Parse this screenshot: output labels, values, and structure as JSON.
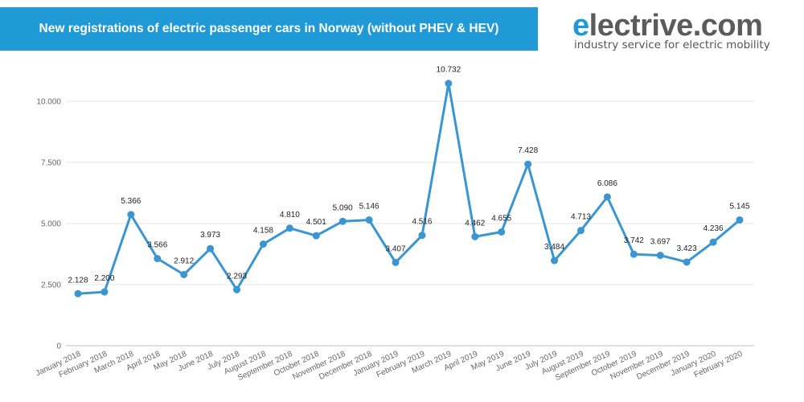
{
  "header": {
    "title": "New registrations of electric passenger cars in Norway (without PHEV & HEV)"
  },
  "logo": {
    "e": "e",
    "rest": "lectrive.com",
    "tagline": "industry service for electric mobility"
  },
  "colors": {
    "title_bar": "#1f9ad6",
    "series": "#3a96d3",
    "grid": "#e5e5e5"
  },
  "chart_data": {
    "type": "line",
    "title": "New registrations of electric passenger cars in Norway (without PHEV & HEV)",
    "xlabel": "",
    "ylabel": "",
    "ylim": [
      0,
      12500
    ],
    "grid": true,
    "yticks": [
      0,
      2500,
      5000,
      7500,
      10000
    ],
    "ytick_labels": [
      "0",
      "2.500",
      "5.000",
      "7.500",
      "10.000"
    ],
    "categories": [
      "January 2018",
      "February 2018",
      "March 2018",
      "April 2018",
      "May 2018",
      "June 2018",
      "July 2018",
      "August 2018",
      "September 2018",
      "October 2018",
      "November 2018",
      "December 2018",
      "January 2019",
      "February 2019",
      "March 2019",
      "April 2019",
      "May 2019",
      "June 2019",
      "July 2019",
      "August 2019",
      "September 2019",
      "October 2019",
      "November 2019",
      "December 2019",
      "January 2020",
      "February 2020"
    ],
    "values": [
      2128,
      2200,
      5366,
      3566,
      2912,
      3973,
      2293,
      4158,
      4810,
      4501,
      5090,
      5146,
      3407,
      4516,
      10732,
      4462,
      4655,
      7428,
      3484,
      4713,
      6086,
      3742,
      3697,
      3423,
      4236,
      5145
    ],
    "value_labels": [
      "2.128",
      "2.200",
      "5.366",
      "3.566",
      "2.912",
      "3.973",
      "2.293",
      "4.158",
      "4.810",
      "4.501",
      "5.090",
      "5.146",
      "3.407",
      "4.516",
      "10.732",
      "4.462",
      "4.655",
      "7.428",
      "3.484",
      "4.713",
      "6.086",
      "3.742",
      "3.697",
      "3.423",
      "4.236",
      "5.145"
    ]
  }
}
